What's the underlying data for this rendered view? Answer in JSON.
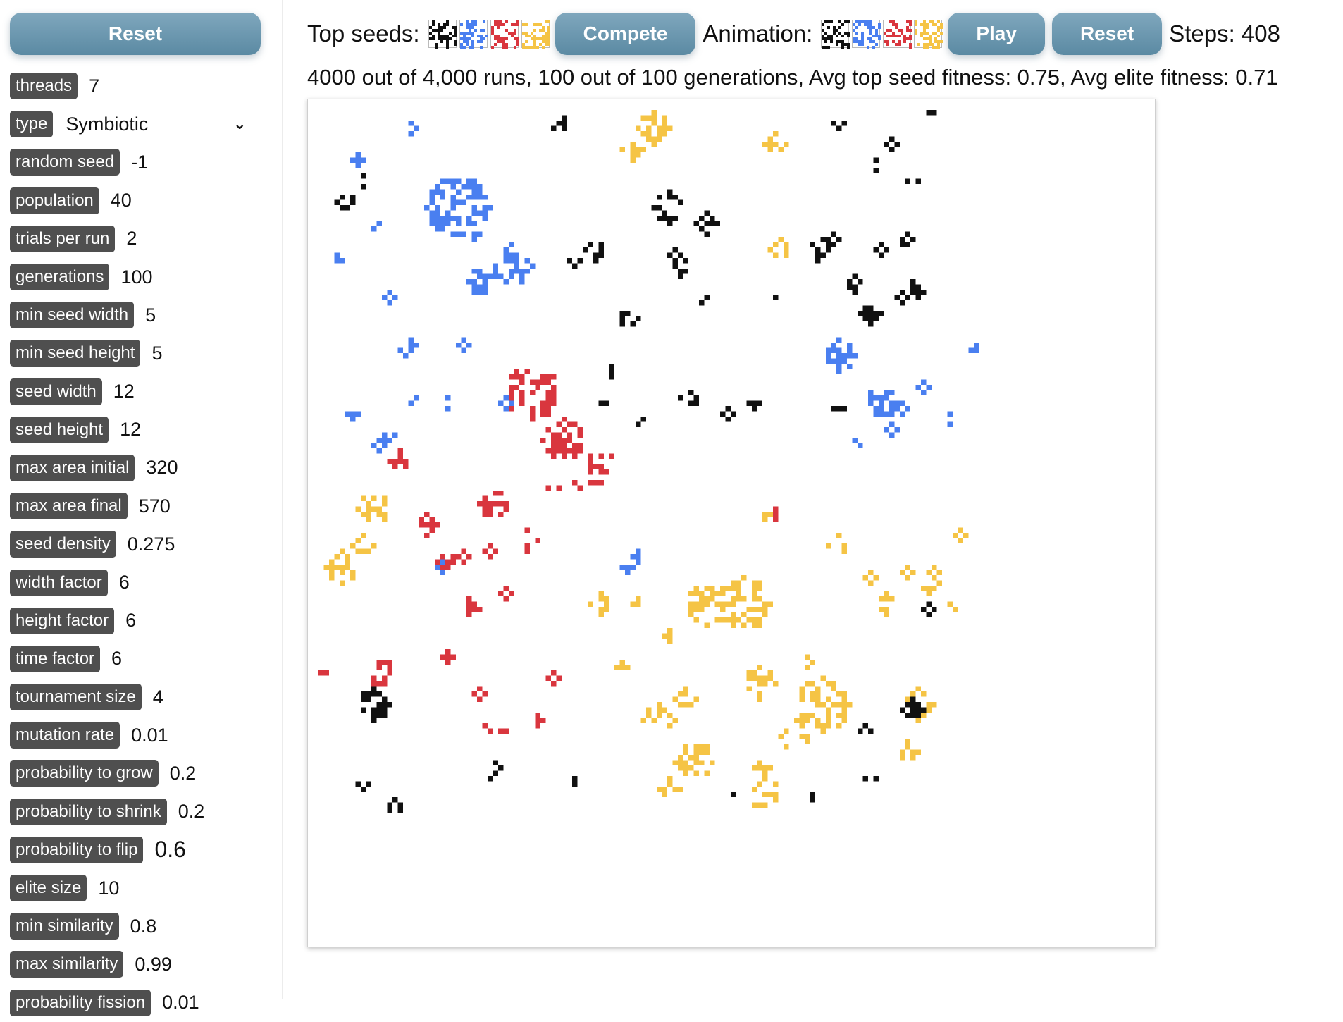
{
  "sidebar": {
    "reset_label": "Reset",
    "params": [
      {
        "label": "threads",
        "value": "7"
      },
      {
        "label": "type",
        "value": "Symbiotic",
        "select": true
      },
      {
        "label": "random seed",
        "value": "-1"
      },
      {
        "label": "population",
        "value": "40"
      },
      {
        "label": "trials per run",
        "value": "2"
      },
      {
        "label": "generations",
        "value": "100"
      },
      {
        "label": "min seed width",
        "value": "5"
      },
      {
        "label": "min seed height",
        "value": "5"
      },
      {
        "label": "seed width",
        "value": "12"
      },
      {
        "label": "seed height",
        "value": "12"
      },
      {
        "label": "max area initial",
        "value": "320"
      },
      {
        "label": "max area final",
        "value": "570"
      },
      {
        "label": "seed density",
        "value": "0.275"
      },
      {
        "label": "width factor",
        "value": "6"
      },
      {
        "label": "height factor",
        "value": "6"
      },
      {
        "label": "time factor",
        "value": "6"
      },
      {
        "label": "tournament size",
        "value": "4"
      },
      {
        "label": "mutation rate",
        "value": "0.01"
      },
      {
        "label": "probability to grow",
        "value": "0.2"
      },
      {
        "label": "probability to shrink",
        "value": "0.2"
      },
      {
        "label": "probability to flip",
        "value": "0.6",
        "big": true
      },
      {
        "label": "elite size",
        "value": "10"
      },
      {
        "label": "min similarity",
        "value": "0.8"
      },
      {
        "label": "max similarity",
        "value": "0.99"
      },
      {
        "label": "probability fission",
        "value": "0.01"
      }
    ]
  },
  "toolbar": {
    "top_seeds_label": "Top seeds:",
    "compete_label": "Compete",
    "animation_label": "Animation:",
    "play_label": "Play",
    "reset_label": "Reset",
    "steps_text": "Steps: 408"
  },
  "status_text": "4000 out of 4,000 runs, 100 out of 100 generations, Avg top seed fitness: 0.75, Avg elite fitness: 0.71",
  "colors": {
    "black": "#111111",
    "blue": "#4a7ff0",
    "red": "#d9363e",
    "yellow": "#f5c445",
    "button": "#6a96ad"
  }
}
